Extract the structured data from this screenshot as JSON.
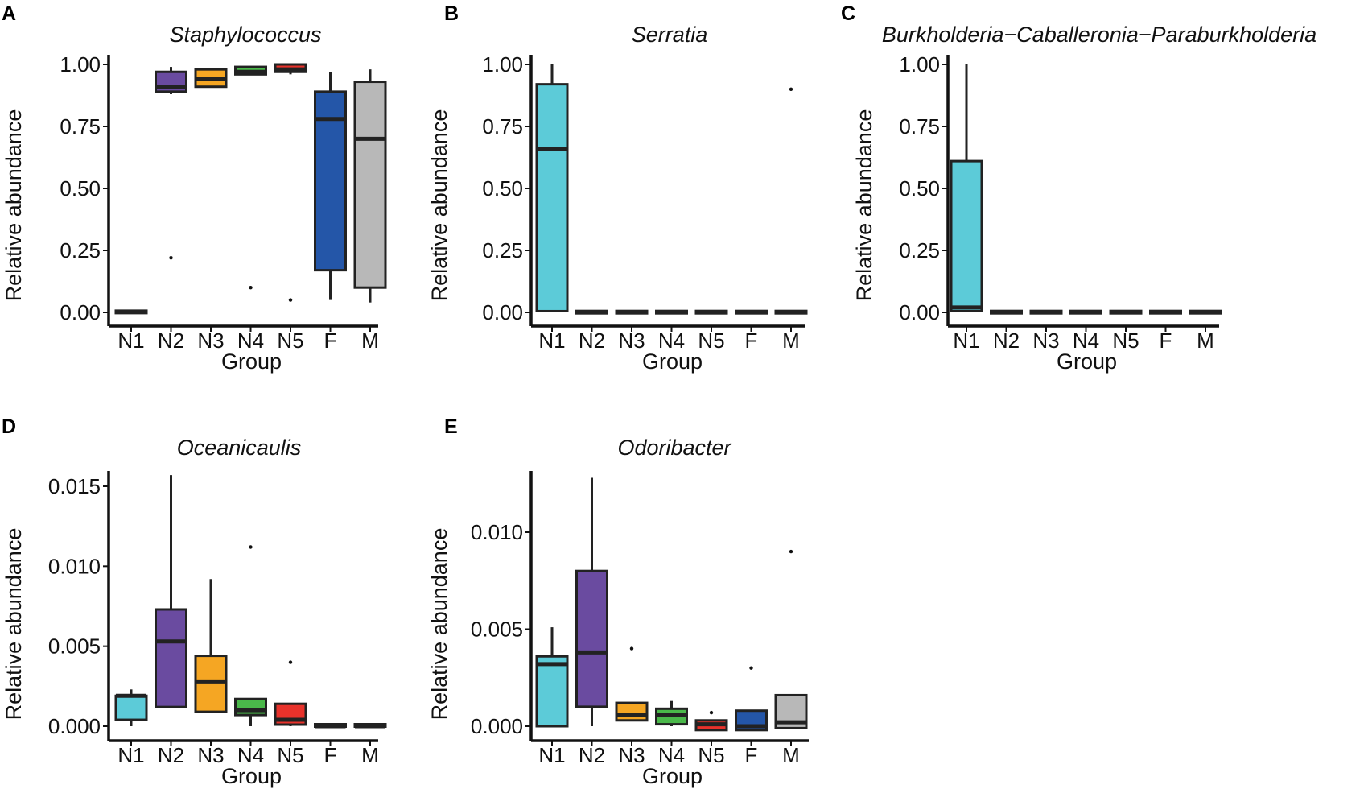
{
  "figure": {
    "panels": [
      "A",
      "B",
      "C",
      "D",
      "E"
    ]
  },
  "chart_data": [
    {
      "panel": "A",
      "type": "box",
      "title": "Staphylococcus",
      "xlabel": "Group",
      "ylabel": "Relative abundance",
      "categories": [
        "N1",
        "N2",
        "N3",
        "N4",
        "N5",
        "F",
        "M"
      ],
      "colors": [
        "#5ccbd8",
        "#6a4ba0",
        "#f5a623",
        "#4ab84a",
        "#e8322b",
        "#2456a8",
        "#b8b8b8"
      ],
      "ylim": [
        0,
        1.05
      ],
      "yticks": [
        0,
        0.25,
        0.5,
        0.75,
        1.0
      ],
      "ytick_labels": [
        "0.00",
        "0.25",
        "0.50",
        "0.75",
        "1.00"
      ],
      "boxes": [
        {
          "min": 0.0,
          "q1": 0.0,
          "median": 0.002,
          "q3": 0.004,
          "max": 0.006,
          "outliers": []
        },
        {
          "min": 0.88,
          "q1": 0.89,
          "median": 0.91,
          "q3": 0.97,
          "max": 0.99,
          "outliers": [
            0.22
          ]
        },
        {
          "min": 0.91,
          "q1": 0.91,
          "median": 0.94,
          "q3": 0.98,
          "max": 0.98,
          "outliers": []
        },
        {
          "min": 0.96,
          "q1": 0.96,
          "median": 0.97,
          "q3": 0.99,
          "max": 0.99,
          "outliers": [
            0.1
          ]
        },
        {
          "min": 0.96,
          "q1": 0.97,
          "median": 0.98,
          "q3": 1.0,
          "max": 1.0,
          "outliers": [
            0.05
          ]
        },
        {
          "min": 0.05,
          "q1": 0.17,
          "median": 0.78,
          "q3": 0.89,
          "max": 0.97,
          "outliers": []
        },
        {
          "min": 0.04,
          "q1": 0.1,
          "median": 0.7,
          "q3": 0.93,
          "max": 0.98,
          "outliers": []
        }
      ]
    },
    {
      "panel": "B",
      "type": "box",
      "title": "Serratia",
      "xlabel": "Group",
      "ylabel": "Relative abundance",
      "categories": [
        "N1",
        "N2",
        "N3",
        "N4",
        "N5",
        "F",
        "M"
      ],
      "colors": [
        "#5ccbd8",
        "#6a4ba0",
        "#f5a623",
        "#4ab84a",
        "#e8322b",
        "#2456a8",
        "#b8b8b8"
      ],
      "ylim": [
        0,
        1.05
      ],
      "yticks": [
        0,
        0.25,
        0.5,
        0.75,
        1.0
      ],
      "ytick_labels": [
        "0.00",
        "0.25",
        "0.50",
        "0.75",
        "1.00"
      ],
      "boxes": [
        {
          "min": 0.0,
          "q1": 0.005,
          "median": 0.66,
          "q3": 0.92,
          "max": 1.0,
          "outliers": []
        },
        {
          "min": 0.0,
          "q1": 0.0,
          "median": 0.001,
          "q3": 0.002,
          "max": 0.003,
          "outliers": []
        },
        {
          "min": 0.0,
          "q1": 0.0,
          "median": 0.001,
          "q3": 0.002,
          "max": 0.003,
          "outliers": []
        },
        {
          "min": 0.0,
          "q1": 0.0,
          "median": 0.001,
          "q3": 0.002,
          "max": 0.006,
          "outliers": []
        },
        {
          "min": 0.0,
          "q1": 0.0,
          "median": 0.001,
          "q3": 0.002,
          "max": 0.003,
          "outliers": []
        },
        {
          "min": 0.0,
          "q1": 0.0,
          "median": 0.001,
          "q3": 0.002,
          "max": 0.003,
          "outliers": []
        },
        {
          "min": 0.0,
          "q1": 0.0,
          "median": 0.001,
          "q3": 0.002,
          "max": 0.003,
          "outliers": [
            0.9
          ]
        }
      ]
    },
    {
      "panel": "C",
      "type": "box",
      "title": "Burkholderia−Caballeronia−Paraburkholderia",
      "xlabel": "Group",
      "ylabel": "Relative abundance",
      "categories": [
        "N1",
        "N2",
        "N3",
        "N4",
        "N5",
        "F",
        "M"
      ],
      "colors": [
        "#5ccbd8",
        "#6a4ba0",
        "#f5a623",
        "#4ab84a",
        "#e8322b",
        "#2456a8",
        "#b8b8b8"
      ],
      "ylim": [
        0,
        1.05
      ],
      "yticks": [
        0,
        0.25,
        0.5,
        0.75,
        1.0
      ],
      "ytick_labels": [
        "0.00",
        "0.25",
        "0.50",
        "0.75",
        "1.00"
      ],
      "boxes": [
        {
          "min": 0.005,
          "q1": 0.005,
          "median": 0.02,
          "q3": 0.61,
          "max": 1.0,
          "outliers": []
        },
        {
          "min": 0.0,
          "q1": 0.0,
          "median": 0.001,
          "q3": 0.002,
          "max": 0.003,
          "outliers": []
        },
        {
          "min": 0.0,
          "q1": 0.0,
          "median": 0.001,
          "q3": 0.002,
          "max": 0.003,
          "outliers": []
        },
        {
          "min": 0.0,
          "q1": 0.0,
          "median": 0.001,
          "q3": 0.002,
          "max": 0.003,
          "outliers": []
        },
        {
          "min": 0.0,
          "q1": 0.0,
          "median": 0.001,
          "q3": 0.002,
          "max": 0.003,
          "outliers": []
        },
        {
          "min": 0.0,
          "q1": 0.0,
          "median": 0.001,
          "q3": 0.002,
          "max": 0.003,
          "outliers": []
        },
        {
          "min": 0.0,
          "q1": 0.0,
          "median": 0.001,
          "q3": 0.002,
          "max": 0.003,
          "outliers": []
        }
      ]
    },
    {
      "panel": "D",
      "type": "box",
      "title": "Oceanicaulis",
      "xlabel": "Group",
      "ylabel": "Relative abundance",
      "categories": [
        "N1",
        "N2",
        "N3",
        "N4",
        "N5",
        "F",
        "M"
      ],
      "colors": [
        "#5ccbd8",
        "#6a4ba0",
        "#f5a623",
        "#4ab84a",
        "#e8322b",
        "#2456a8",
        "#b8b8b8"
      ],
      "ylim": [
        -0.0006,
        0.0165
      ],
      "yticks": [
        0,
        0.005,
        0.01,
        0.015
      ],
      "ytick_labels": [
        "0.000",
        "0.005",
        "0.010",
        "0.015"
      ],
      "boxes": [
        {
          "min": 0.0,
          "q1": 0.0004,
          "median": 0.0019,
          "q3": 0.0019,
          "max": 0.0023,
          "outliers": []
        },
        {
          "min": 0.0012,
          "q1": 0.0012,
          "median": 0.0053,
          "q3": 0.0073,
          "max": 0.0157,
          "outliers": []
        },
        {
          "min": 0.0009,
          "q1": 0.0009,
          "median": 0.0028,
          "q3": 0.0044,
          "max": 0.0092,
          "outliers": []
        },
        {
          "min": 0.0,
          "q1": 0.0007,
          "median": 0.001,
          "q3": 0.0017,
          "max": 0.0017,
          "outliers": [
            0.0112
          ]
        },
        {
          "min": 0.0,
          "q1": 0.0001,
          "median": 0.0004,
          "q3": 0.0014,
          "max": 0.0014,
          "outliers": [
            0.004
          ]
        },
        {
          "min": 0.0,
          "q1": 0.0,
          "median": 0.0,
          "q3": 0.0001,
          "max": 0.0001,
          "outliers": []
        },
        {
          "min": 0.0,
          "q1": 0.0,
          "median": 0.0,
          "q3": 0.0001,
          "max": 0.0001,
          "outliers": []
        }
      ]
    },
    {
      "panel": "E",
      "type": "box",
      "title": "Odoribacter",
      "xlabel": "Group",
      "ylabel": "Relative abundance",
      "categories": [
        "N1",
        "N2",
        "N3",
        "N4",
        "N5",
        "F",
        "M"
      ],
      "colors": [
        "#5ccbd8",
        "#6a4ba0",
        "#f5a623",
        "#4ab84a",
        "#e8322b",
        "#2456a8",
        "#b8b8b8"
      ],
      "ylim": [
        -0.0007,
        0.0136
      ],
      "yticks": [
        0,
        0.005,
        0.01
      ],
      "ytick_labels": [
        "0.000",
        "0.005",
        "0.010"
      ],
      "boxes": [
        {
          "min": 0.0,
          "q1": 0.0,
          "median": 0.0032,
          "q3": 0.0036,
          "max": 0.0051,
          "outliers": []
        },
        {
          "min": 0.0,
          "q1": 0.001,
          "median": 0.0038,
          "q3": 0.008,
          "max": 0.0128,
          "outliers": []
        },
        {
          "min": 0.0003,
          "q1": 0.0003,
          "median": 0.0006,
          "q3": 0.0012,
          "max": 0.0012,
          "outliers": [
            0.004
          ]
        },
        {
          "min": 0.0,
          "q1": 0.0001,
          "median": 0.0006,
          "q3": 0.0009,
          "max": 0.0013,
          "outliers": []
        },
        {
          "min": -0.0002,
          "q1": -0.0002,
          "median": 0.0001,
          "q3": 0.0003,
          "max": 0.0003,
          "outliers": [
            0.0007
          ]
        },
        {
          "min": -0.0002,
          "q1": -0.0002,
          "median": 0.0,
          "q3": 0.0008,
          "max": 0.0008,
          "outliers": [
            0.003
          ]
        },
        {
          "min": -0.0001,
          "q1": -0.0001,
          "median": 0.0002,
          "q3": 0.0016,
          "max": 0.0016,
          "outliers": [
            0.009
          ]
        }
      ]
    }
  ]
}
